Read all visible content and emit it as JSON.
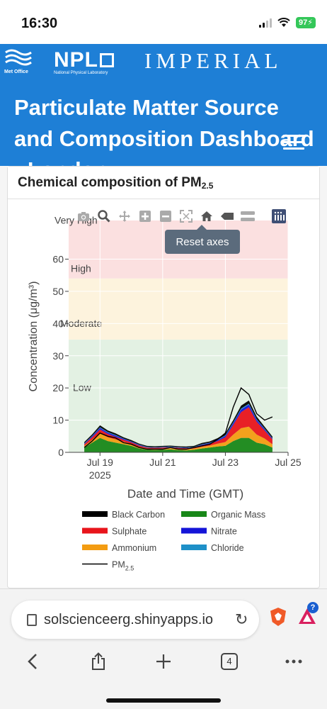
{
  "status": {
    "time": "16:30",
    "battery": "97"
  },
  "header": {
    "metoffice_label": "Met Office",
    "npl_label": "NPL",
    "npl_sub": "National Physical Laboratory",
    "imperial_label": "IMPERIAL",
    "title": "Particulate Matter Source and Composition Dashboard - London"
  },
  "card": {
    "title_main": "Chemical composition of PM",
    "title_sub": "2.5"
  },
  "toolbar": {
    "tooltip": "Reset axes"
  },
  "chart_data": {
    "type": "area",
    "xlabel": "Date and Time (GMT)",
    "ylabel": "Concentration (μg/m³)",
    "ylim": [
      0,
      72
    ],
    "x_ticks": [
      {
        "label": "Jul 19",
        "sub": "2025",
        "day": 19
      },
      {
        "label": "Jul 21",
        "sub": "",
        "day": 21
      },
      {
        "label": "Jul 23",
        "sub": "",
        "day": 23
      },
      {
        "label": "Jul 25",
        "sub": "",
        "day": 25
      }
    ],
    "y_ticks": [
      0,
      10,
      20,
      30,
      40,
      50,
      60
    ],
    "bands": [
      {
        "label": "Low",
        "from": 0,
        "to": 35,
        "color": "#e3f1e3"
      },
      {
        "label": "Moderate",
        "from": 35,
        "to": 54,
        "color": "#fdf3dd"
      },
      {
        "label": "High",
        "from": 54,
        "to": 72,
        "color": "#fbe0e0"
      },
      {
        "label": "Very High",
        "from": 72,
        "to": 100,
        "color": "#fbe0e0"
      }
    ],
    "x": [
      "2025-07-18 12:00",
      "2025-07-18 18:00",
      "2025-07-19 00:00",
      "2025-07-19 06:00",
      "2025-07-19 12:00",
      "2025-07-19 18:00",
      "2025-07-20 00:00",
      "2025-07-20 06:00",
      "2025-07-20 12:00",
      "2025-07-20 18:00",
      "2025-07-21 00:00",
      "2025-07-21 06:00",
      "2025-07-21 12:00",
      "2025-07-21 18:00",
      "2025-07-22 00:00",
      "2025-07-22 06:00",
      "2025-07-22 12:00",
      "2025-07-22 18:00",
      "2025-07-23 00:00",
      "2025-07-23 06:00",
      "2025-07-23 12:00",
      "2025-07-23 18:00",
      "2025-07-24 00:00",
      "2025-07-24 06:00",
      "2025-07-24 12:00"
    ],
    "series": [
      {
        "name": "Black Carbon",
        "color": "#000000",
        "values": [
          0.4,
          0.5,
          0.6,
          0.5,
          0.5,
          0.4,
          0.4,
          0.3,
          0.3,
          0.3,
          0.3,
          0.3,
          0.3,
          0.3,
          0.3,
          0.4,
          0.4,
          0.5,
          0.6,
          0.7,
          0.9,
          1.0,
          0.8,
          0.6,
          0.5
        ]
      },
      {
        "name": "Sulphate",
        "color": "#e8141b",
        "values": [
          0.5,
          0.8,
          1.2,
          1.0,
          0.8,
          0.6,
          0.5,
          0.4,
          0.3,
          0.3,
          0.3,
          0.3,
          0.3,
          0.3,
          0.3,
          0.5,
          0.6,
          0.8,
          1.5,
          3.0,
          5.0,
          6.0,
          4.0,
          2.5,
          1.5
        ]
      },
      {
        "name": "Ammonium",
        "color": "#f39c12",
        "values": [
          0.5,
          0.9,
          1.4,
          1.2,
          1.0,
          0.8,
          0.6,
          0.5,
          0.4,
          0.4,
          0.4,
          0.4,
          0.4,
          0.4,
          0.4,
          0.5,
          0.6,
          0.9,
          1.2,
          2.0,
          3.0,
          3.5,
          2.5,
          1.8,
          1.0
        ]
      },
      {
        "name": "Organic Mass",
        "color": "#188718",
        "values": [
          1.5,
          3.0,
          4.5,
          3.5,
          3.0,
          2.5,
          2.0,
          1.2,
          0.8,
          0.7,
          0.8,
          0.9,
          0.7,
          0.6,
          0.8,
          1.2,
          1.5,
          1.8,
          2.0,
          3.5,
          4.5,
          4.5,
          3.0,
          2.5,
          1.5
        ]
      },
      {
        "name": "Nitrate",
        "color": "#1414d8",
        "values": [
          0.2,
          0.3,
          0.5,
          0.4,
          0.4,
          0.3,
          0.2,
          0.2,
          0.1,
          0.1,
          0.1,
          0.1,
          0.1,
          0.1,
          0.1,
          0.2,
          0.2,
          0.3,
          0.4,
          0.6,
          0.8,
          0.8,
          0.6,
          0.4,
          0.3
        ]
      },
      {
        "name": "Chloride",
        "color": "#1e90c8",
        "values": [
          0.1,
          0.1,
          0.2,
          0.2,
          0.2,
          0.1,
          0.1,
          0.1,
          0.1,
          0.1,
          0.1,
          0.1,
          0.1,
          0.1,
          0.1,
          0.1,
          0.1,
          0.1,
          0.2,
          0.2,
          0.3,
          0.3,
          0.2,
          0.2,
          0.1
        ]
      },
      {
        "name": "PM2.5",
        "color": "#000000",
        "kind": "line",
        "values": [
          1.5,
          3.5,
          6.0,
          5.0,
          4.5,
          3.0,
          2.5,
          1.5,
          1.0,
          1.0,
          1.0,
          1.5,
          1.0,
          1.0,
          1.5,
          2.0,
          2.5,
          4.0,
          6.0,
          14.0,
          20.0,
          18.0,
          12.0,
          10.0,
          11.0
        ]
      }
    ],
    "legend": [
      {
        "label": "Black Carbon",
        "color": "#000000",
        "kind": "bar"
      },
      {
        "label": "Organic Mass",
        "color": "#188718",
        "kind": "bar"
      },
      {
        "label": "Sulphate",
        "color": "#e8141b",
        "kind": "bar"
      },
      {
        "label": "Nitrate",
        "color": "#1414d8",
        "kind": "bar"
      },
      {
        "label": "Ammonium",
        "color": "#f39c12",
        "kind": "bar"
      },
      {
        "label": "Chloride",
        "color": "#1e90c8",
        "kind": "bar"
      },
      {
        "label": "PM",
        "sub": "2.5",
        "color": "#000000",
        "kind": "line"
      }
    ]
  },
  "browser": {
    "url": "solscienceerg.shinyapps.io",
    "tab_count": "4",
    "rewards_badge": "?"
  }
}
